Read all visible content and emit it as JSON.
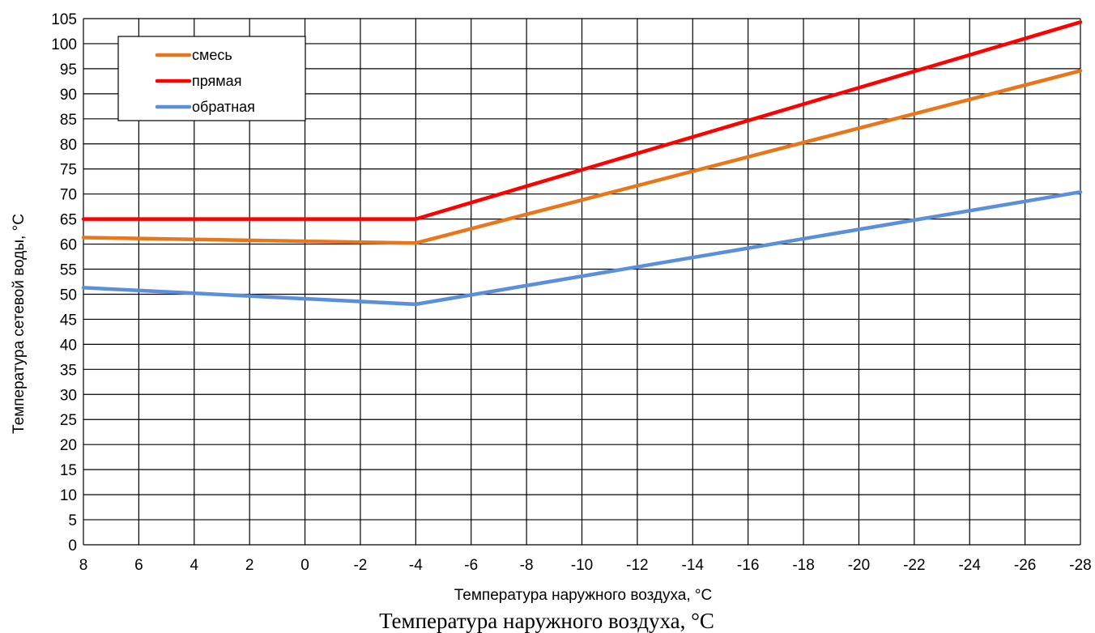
{
  "chart_data": {
    "type": "line",
    "xlabel": "Температура наружного воздуха, °С",
    "xlabel_caption": "Температура наружного воздуха, °С",
    "ylabel": "Температура сетевой воды, °С",
    "x_ticks": [
      "8",
      "6",
      "4",
      "2",
      "0",
      "-2",
      "-4",
      "-6",
      "-8",
      "-10",
      "-12",
      "-14",
      "-16",
      "-18",
      "-20",
      "-22",
      "-24",
      "-26",
      "-28"
    ],
    "y_ticks": [
      "0",
      "5",
      "10",
      "15",
      "20",
      "25",
      "30",
      "35",
      "40",
      "45",
      "50",
      "55",
      "60",
      "65",
      "70",
      "75",
      "80",
      "85",
      "90",
      "95",
      "100",
      "105"
    ],
    "xlim": [
      8,
      -28
    ],
    "ylim": [
      0,
      105
    ],
    "grid": true,
    "legend_position": "top-left",
    "series": [
      {
        "name": "смесь",
        "color": "#e8761a",
        "points": [
          [
            8,
            61.3
          ],
          [
            -4,
            60.2
          ],
          [
            -28,
            94.6
          ]
        ]
      },
      {
        "name": "прямая",
        "color": "#ff0000",
        "points": [
          [
            8,
            65
          ],
          [
            -4,
            65
          ],
          [
            -28,
            104.3
          ]
        ]
      },
      {
        "name": "обратная",
        "color": "#5b8fd9",
        "points": [
          [
            8,
            51.3
          ],
          [
            -4,
            48
          ],
          [
            -28,
            70.4
          ]
        ]
      }
    ]
  }
}
